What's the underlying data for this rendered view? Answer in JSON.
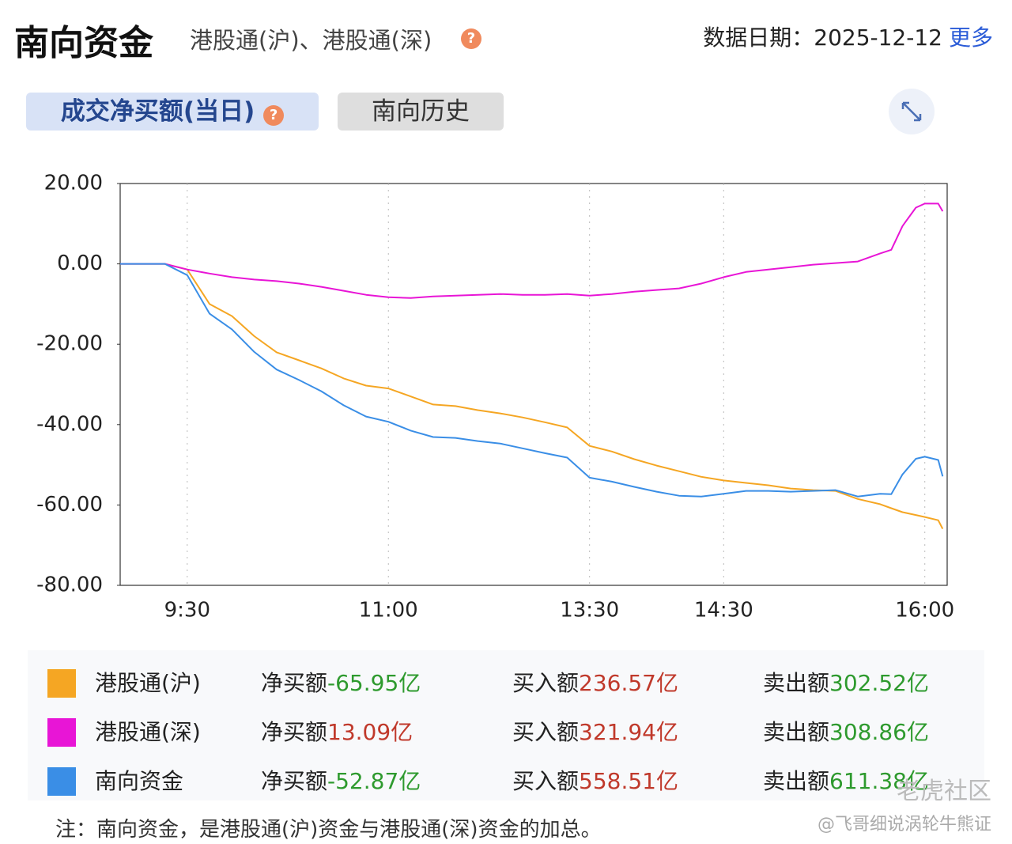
{
  "header": {
    "title": "南向资金",
    "subtitle": "港股通(沪)、港股通(深)",
    "date_label": "数据日期：",
    "date": "2025-12-12",
    "more": "更多"
  },
  "tabs": [
    "成交净买额(当日)",
    "南向历史"
  ],
  "chart_data": {
    "type": "line",
    "x": [
      0,
      10,
      20,
      30,
      40,
      50,
      60,
      70,
      80,
      90,
      100,
      110,
      120,
      130,
      140,
      150,
      160,
      170,
      180,
      190,
      200,
      210,
      220,
      230,
      240,
      250,
      260,
      270,
      280,
      290,
      300,
      310,
      320,
      330,
      340,
      345,
      350,
      356,
      360,
      366,
      368
    ],
    "xlim": [
      0,
      370
    ],
    "xticks": [
      {
        "value": 30,
        "label": "9:30"
      },
      {
        "value": 120,
        "label": "11:00"
      },
      {
        "value": 210,
        "label": "13:30"
      },
      {
        "value": 270,
        "label": "14:30"
      },
      {
        "value": 360,
        "label": "16:00"
      }
    ],
    "ylim": [
      -80,
      20
    ],
    "yticks": [
      {
        "value": 20,
        "label": "20.00"
      },
      {
        "value": 0,
        "label": "0.00"
      },
      {
        "value": -20,
        "label": "-20.00"
      },
      {
        "value": -40,
        "label": "-40.00"
      },
      {
        "value": -60,
        "label": "-60.00"
      },
      {
        "value": -80,
        "label": "-80.00"
      }
    ],
    "grid": "x",
    "series": [
      {
        "name": "港股通(沪)",
        "color": "#f5a623",
        "values": [
          0,
          0,
          0,
          -1.4,
          -10,
          -13,
          -18,
          -22,
          -24,
          -26,
          -28.5,
          -30.3,
          -31,
          -33,
          -35,
          -35.4,
          -36.4,
          -37.2,
          -38.2,
          -39.4,
          -40.7,
          -45.3,
          -46.7,
          -48.6,
          -50.2,
          -51.6,
          -53,
          -53.9,
          -54.5,
          -55.1,
          -55.9,
          -56.3,
          -56.5,
          -58.5,
          -59.8,
          -60.8,
          -61.8,
          -62.5,
          -63,
          -63.8,
          -65.95
        ]
      },
      {
        "name": "港股通(深)",
        "color": "#e815d6",
        "values": [
          0,
          0,
          0,
          -1.4,
          -2.4,
          -3.3,
          -3.9,
          -4.3,
          -4.9,
          -5.7,
          -6.7,
          -7.7,
          -8.3,
          -8.5,
          -8.1,
          -7.9,
          -7.7,
          -7.5,
          -7.7,
          -7.7,
          -7.5,
          -7.9,
          -7.5,
          -6.9,
          -6.5,
          -6.1,
          -4.9,
          -3.3,
          -2.0,
          -1.4,
          -0.8,
          -0.2,
          0.2,
          0.6,
          2.6,
          3.5,
          9.4,
          14.0,
          15.0,
          15.0,
          13.09
        ]
      },
      {
        "name": "南向资金",
        "color": "#3a8ee6",
        "values": [
          0,
          0,
          0,
          -2.8,
          -12.4,
          -16.3,
          -21.9,
          -26.3,
          -28.9,
          -31.7,
          -35.2,
          -38.0,
          -39.3,
          -41.5,
          -43.1,
          -43.3,
          -44.1,
          -44.7,
          -45.9,
          -47.1,
          -48.2,
          -53.2,
          -54.2,
          -55.5,
          -56.7,
          -57.7,
          -57.9,
          -57.2,
          -56.5,
          -56.5,
          -56.7,
          -56.5,
          -56.3,
          -57.9,
          -57.2,
          -57.3,
          -52.4,
          -48.5,
          -48.0,
          -48.8,
          -52.87
        ]
      }
    ]
  },
  "summary": {
    "rows": [
      {
        "net_label": "净买额",
        "net": "-65.95亿",
        "buy_label": "买入额",
        "buy": "236.57亿",
        "sell_label": "卖出额",
        "sell": "302.52亿"
      },
      {
        "net_label": "净买额",
        "net": "13.09亿",
        "buy_label": "买入额",
        "buy": "321.94亿",
        "sell_label": "卖出额",
        "sell": "308.86亿"
      },
      {
        "net_label": "净买额",
        "net": "-52.87亿",
        "buy_label": "买入额",
        "buy": "558.51亿",
        "sell_label": "卖出额",
        "sell": "611.38亿"
      }
    ]
  },
  "note": "注：南向资金，是港股通(沪)资金与港股通(深)资金的加总。",
  "watermark": {
    "brand": "老虎社区",
    "author": "@飞哥细说涡轮牛熊证"
  }
}
